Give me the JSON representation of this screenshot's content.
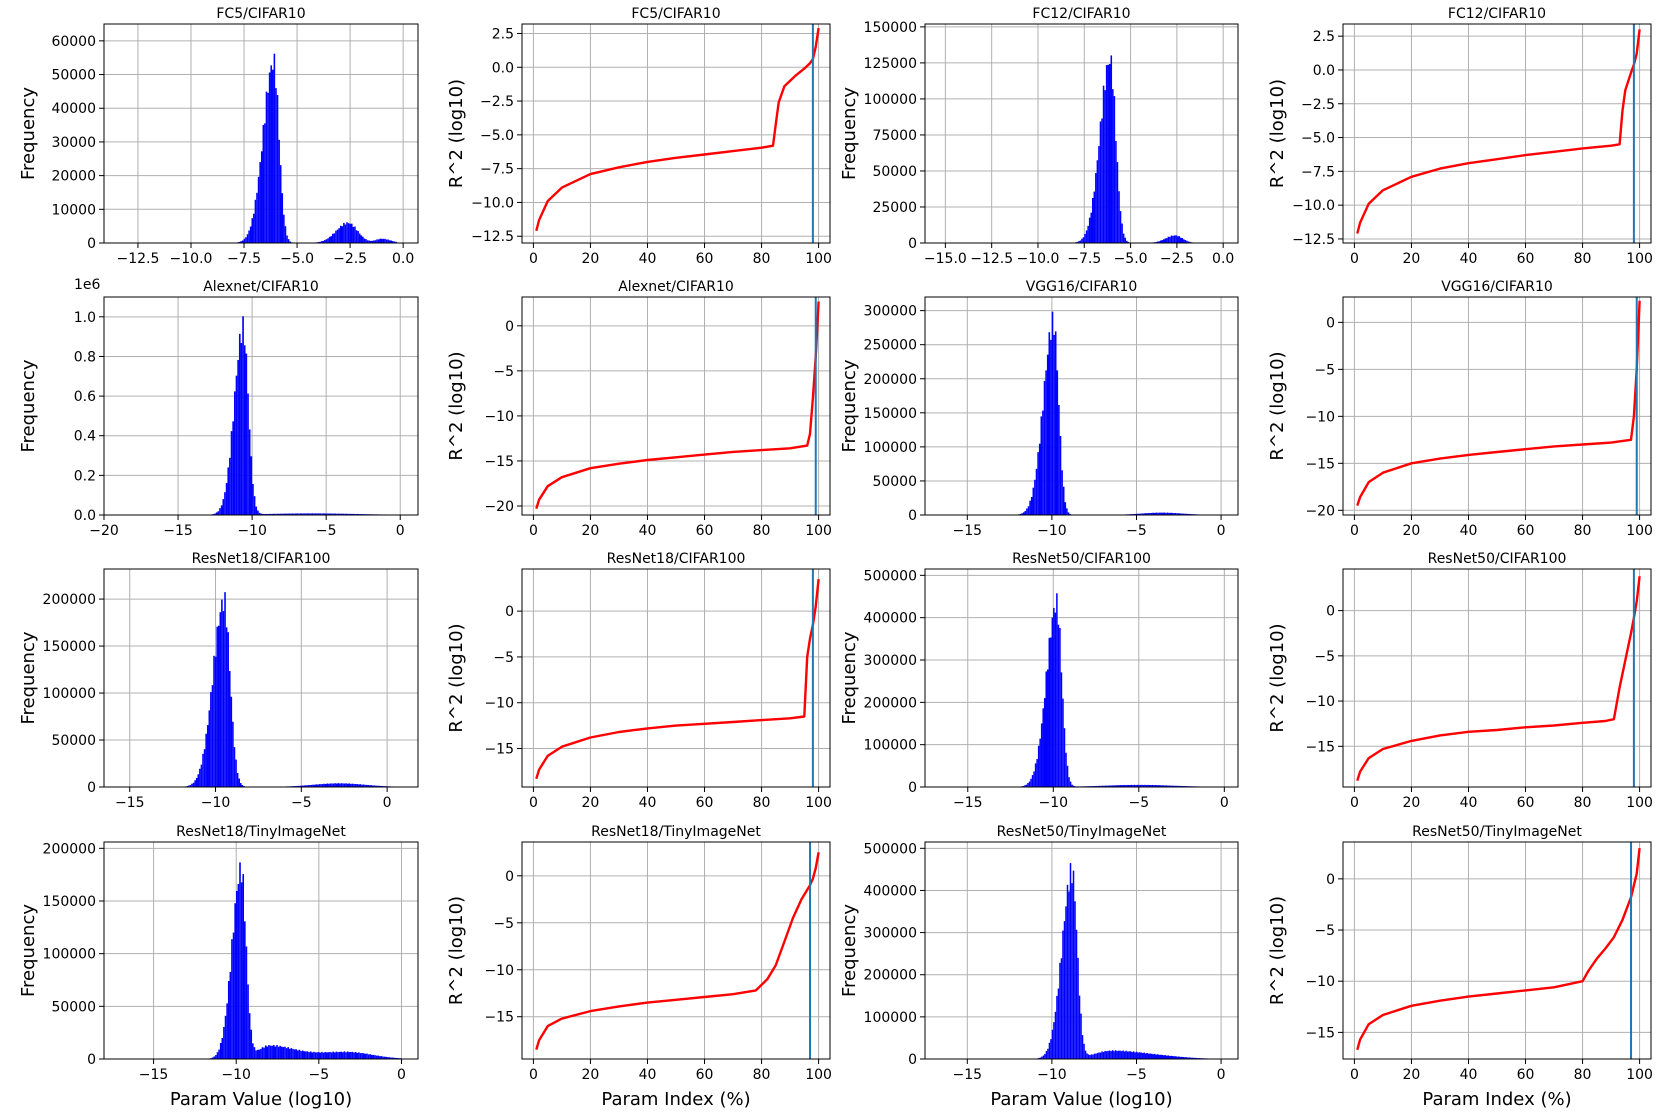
{
  "chart_data": [
    {
      "type": "histogram",
      "title": "FC5/CIFAR10",
      "xlabel": "",
      "ylabel": "Frequency",
      "xlim": [
        -14.1,
        0.7
      ],
      "ylim": [
        0,
        65000
      ],
      "xticks": [
        -12.5,
        -10.0,
        -7.5,
        -5.0,
        -2.5,
        0.0
      ],
      "xtick_labels": [
        "−12.5",
        "−10.0",
        "−7.5",
        "−5.0",
        "−2.5",
        "0.0"
      ],
      "yticks": [
        0,
        10000,
        20000,
        30000,
        40000,
        50000,
        60000
      ],
      "ytick_labels": [
        "0",
        "10000",
        "20000",
        "30000",
        "40000",
        "50000",
        "60000"
      ],
      "offset_text": "",
      "bin_range": [
        -13.7,
        -0.3
      ],
      "peaks": [
        {
          "center": -6.1,
          "height": 57000,
          "wl": 0.5,
          "wr": 0.25
        },
        {
          "center": -2.6,
          "height": 6300,
          "wl": 0.55,
          "wr": 0.45
        },
        {
          "center": -1.0,
          "height": 1300,
          "wl": 0.3,
          "wr": 0.4
        }
      ]
    },
    {
      "type": "line",
      "title": "FC5/CIFAR10",
      "xlabel": "",
      "ylabel": "R^2 (log10)",
      "xlim": [
        -4,
        104
      ],
      "ylim": [
        -13,
        3.2
      ],
      "xticks": [
        0,
        20,
        40,
        60,
        80,
        100
      ],
      "xtick_labels": [
        "0",
        "20",
        "40",
        "60",
        "80",
        "100"
      ],
      "yticks": [
        -12.5,
        -10.0,
        -7.5,
        -5.0,
        -2.5,
        0.0,
        2.5
      ],
      "ytick_labels": [
        "−12.5",
        "−10.0",
        "−7.5",
        "−5.0",
        "−2.5",
        "0.0",
        "2.5"
      ],
      "x": [
        1,
        2,
        5,
        10,
        20,
        30,
        40,
        50,
        60,
        70,
        80,
        84,
        85,
        86,
        88,
        92,
        95,
        97,
        98,
        99,
        100
      ],
      "y": [
        -12.1,
        -11.3,
        -9.9,
        -8.9,
        -7.9,
        -7.4,
        -7.0,
        -6.7,
        -6.45,
        -6.2,
        -5.95,
        -5.8,
        -4.2,
        -2.6,
        -1.4,
        -0.6,
        -0.1,
        0.3,
        0.6,
        1.5,
        2.9
      ],
      "vline": 98
    },
    {
      "type": "histogram",
      "title": "FC12/CIFAR10",
      "xlabel": "",
      "ylabel": "Frequency",
      "xlim": [
        -16.1,
        0.8
      ],
      "ylim": [
        0,
        152000
      ],
      "xticks": [
        -15.0,
        -12.5,
        -10.0,
        -7.5,
        -5.0,
        -2.5,
        0.0
      ],
      "xtick_labels": [
        "−15.0",
        "−12.5",
        "−10.0",
        "−7.5",
        "−5.0",
        "−2.5",
        "0.0"
      ],
      "yticks": [
        0,
        25000,
        50000,
        75000,
        100000,
        125000,
        150000
      ],
      "ytick_labels": [
        "0",
        "25000",
        "50000",
        "75000",
        "100000",
        "125000",
        "150000"
      ],
      "offset_text": "",
      "bin_range": [
        -15.5,
        -0.5
      ],
      "peaks": [
        {
          "center": -6.1,
          "height": 135000,
          "wl": 0.55,
          "wr": 0.3
        },
        {
          "center": -2.6,
          "height": 5500,
          "wl": 0.5,
          "wr": 0.4
        }
      ]
    },
    {
      "type": "line",
      "title": "FC12/CIFAR10",
      "xlabel": "",
      "ylabel": "R^2 (log10)",
      "xlim": [
        -4,
        104
      ],
      "ylim": [
        -12.8,
        3.4
      ],
      "xticks": [
        0,
        20,
        40,
        60,
        80,
        100
      ],
      "xtick_labels": [
        "0",
        "20",
        "40",
        "60",
        "80",
        "100"
      ],
      "yticks": [
        -12.5,
        -10.0,
        -7.5,
        -5.0,
        -2.5,
        0.0,
        2.5
      ],
      "ytick_labels": [
        "−12.5",
        "−10.0",
        "−7.5",
        "−5.0",
        "−2.5",
        "0.0",
        "2.5"
      ],
      "x": [
        1,
        2,
        5,
        10,
        20,
        30,
        40,
        50,
        60,
        70,
        80,
        90,
        93,
        94,
        95,
        97,
        98,
        99,
        100
      ],
      "y": [
        -12.1,
        -11.3,
        -9.9,
        -8.9,
        -7.9,
        -7.3,
        -6.9,
        -6.6,
        -6.3,
        -6.05,
        -5.8,
        -5.6,
        -5.5,
        -3.0,
        -1.5,
        -0.2,
        0.4,
        1.2,
        3.0
      ],
      "vline": 98
    },
    {
      "type": "histogram",
      "title": "Alexnet/CIFAR10",
      "xlabel": "",
      "ylabel": "Frequency",
      "xlim": [
        -20.0,
        1.2
      ],
      "ylim": [
        0,
        1.1
      ],
      "xticks": [
        -20,
        -15,
        -10,
        -5,
        0
      ],
      "xtick_labels": [
        "−20",
        "−15",
        "−10",
        "−5",
        "0"
      ],
      "yticks": [
        0.0,
        0.2,
        0.4,
        0.6,
        0.8,
        1.0
      ],
      "ytick_labels": [
        "0.0",
        "0.2",
        "0.4",
        "0.6",
        "0.8",
        "1.0"
      ],
      "offset_text": "1e6",
      "bin_range": [
        -20,
        0
      ],
      "peaks": [
        {
          "center": -10.6,
          "height": 1.0,
          "wl": 0.6,
          "wr": 0.35
        },
        {
          "center": -6.0,
          "height": 0.008,
          "wl": 3.0,
          "wr": 3.0
        }
      ]
    },
    {
      "type": "line",
      "title": "Alexnet/CIFAR10",
      "xlabel": "",
      "ylabel": "R^2 (log10)",
      "xlim": [
        -4,
        104
      ],
      "ylim": [
        -21,
        3.2
      ],
      "xticks": [
        0,
        20,
        40,
        60,
        80,
        100
      ],
      "xtick_labels": [
        "0",
        "20",
        "40",
        "60",
        "80",
        "100"
      ],
      "yticks": [
        -20,
        -15,
        -10,
        -5,
        0
      ],
      "ytick_labels": [
        "−20",
        "−15",
        "−10",
        "−5",
        "0"
      ],
      "x": [
        1,
        2,
        5,
        10,
        20,
        30,
        40,
        50,
        60,
        70,
        80,
        90,
        96,
        97,
        98,
        99,
        100
      ],
      "y": [
        -20.3,
        -19.3,
        -17.8,
        -16.8,
        -15.8,
        -15.3,
        -14.9,
        -14.6,
        -14.3,
        -14.0,
        -13.8,
        -13.6,
        -13.3,
        -12.0,
        -8.0,
        -3.5,
        2.7
      ],
      "vline": 99
    },
    {
      "type": "histogram",
      "title": "VGG16/CIFAR10",
      "xlabel": "",
      "ylabel": "Frequency",
      "xlim": [
        -17.5,
        1.0
      ],
      "ylim": [
        0,
        320000
      ],
      "xticks": [
        -15,
        -10,
        -5,
        0
      ],
      "xtick_labels": [
        "−15",
        "−10",
        "−5",
        "0"
      ],
      "yticks": [
        0,
        50000,
        100000,
        150000,
        200000,
        250000,
        300000
      ],
      "ytick_labels": [
        "0",
        "50000",
        "100000",
        "150000",
        "200000",
        "250000",
        "300000"
      ],
      "offset_text": "",
      "bin_range": [
        -17,
        0
      ],
      "peaks": [
        {
          "center": -9.9,
          "height": 300000,
          "wl": 0.6,
          "wr": 0.3
        },
        {
          "center": -3.5,
          "height": 3500,
          "wl": 1.2,
          "wr": 1.2
        }
      ]
    },
    {
      "type": "line",
      "title": "VGG16/CIFAR10",
      "xlabel": "",
      "ylabel": "R^2 (log10)",
      "xlim": [
        -4,
        104
      ],
      "ylim": [
        -20.5,
        2.7
      ],
      "xticks": [
        0,
        20,
        40,
        60,
        80,
        100
      ],
      "xtick_labels": [
        "0",
        "20",
        "40",
        "60",
        "80",
        "100"
      ],
      "yticks": [
        -20,
        -15,
        -10,
        -5,
        0
      ],
      "ytick_labels": [
        "−20",
        "−15",
        "−10",
        "−5",
        "0"
      ],
      "x": [
        1,
        2,
        5,
        10,
        20,
        30,
        40,
        50,
        60,
        70,
        80,
        90,
        97,
        98,
        99,
        100
      ],
      "y": [
        -19.5,
        -18.6,
        -17.0,
        -16.0,
        -15.0,
        -14.5,
        -14.1,
        -13.8,
        -13.5,
        -13.2,
        -13.0,
        -12.8,
        -12.5,
        -10.0,
        -5.0,
        2.3
      ],
      "vline": 99
    },
    {
      "type": "histogram",
      "title": "ResNet18/CIFAR100",
      "xlabel": "",
      "ylabel": "Frequency",
      "xlim": [
        -16.5,
        1.8
      ],
      "ylim": [
        0,
        232000
      ],
      "xticks": [
        -15,
        -10,
        -5,
        0
      ],
      "xtick_labels": [
        "−15",
        "−10",
        "−5",
        "0"
      ],
      "yticks": [
        0,
        50000,
        100000,
        150000,
        200000
      ],
      "ytick_labels": [
        "0",
        "50000",
        "100000",
        "150000",
        "200000"
      ],
      "offset_text": "",
      "bin_range": [
        -16,
        0.5
      ],
      "peaks": [
        {
          "center": -9.5,
          "height": 210000,
          "wl": 0.65,
          "wr": 0.35
        },
        {
          "center": -2.8,
          "height": 4000,
          "wl": 1.5,
          "wr": 1.5
        }
      ]
    },
    {
      "type": "line",
      "title": "ResNet18/CIFAR100",
      "xlabel": "",
      "ylabel": "R^2 (log10)",
      "xlim": [
        -4,
        104
      ],
      "ylim": [
        -19.2,
        4.6
      ],
      "xticks": [
        0,
        20,
        40,
        60,
        80,
        100
      ],
      "xtick_labels": [
        "0",
        "20",
        "40",
        "60",
        "80",
        "100"
      ],
      "yticks": [
        -15,
        -10,
        -5,
        0
      ],
      "ytick_labels": [
        "−15",
        "−10",
        "−5",
        "0"
      ],
      "x": [
        1,
        2,
        5,
        10,
        20,
        30,
        40,
        50,
        60,
        70,
        80,
        90,
        95,
        96,
        97,
        98,
        99,
        100
      ],
      "y": [
        -18.3,
        -17.3,
        -15.8,
        -14.8,
        -13.8,
        -13.2,
        -12.8,
        -12.5,
        -12.3,
        -12.1,
        -11.9,
        -11.7,
        -11.5,
        -5.0,
        -3.0,
        -1.5,
        0.5,
        3.5
      ],
      "vline": 98
    },
    {
      "type": "histogram",
      "title": "ResNet50/CIFAR100",
      "xlabel": "",
      "ylabel": "Frequency",
      "xlim": [
        -17.5,
        0.8
      ],
      "ylim": [
        0,
        515000
      ],
      "xticks": [
        -15,
        -10,
        -5,
        0
      ],
      "xtick_labels": [
        "−15",
        "−10",
        "−5",
        "0"
      ],
      "yticks": [
        0,
        100000,
        200000,
        300000,
        400000,
        500000
      ],
      "ytick_labels": [
        "0",
        "100000",
        "200000",
        "300000",
        "400000",
        "500000"
      ],
      "offset_text": "",
      "bin_range": [
        -16.5,
        -0.5
      ],
      "peaks": [
        {
          "center": -9.8,
          "height": 460000,
          "wl": 0.6,
          "wr": 0.3
        },
        {
          "center": -5.0,
          "height": 5000,
          "wl": 2.0,
          "wr": 2.0
        }
      ]
    },
    {
      "type": "line",
      "title": "ResNet50/CIFAR100",
      "xlabel": "",
      "ylabel": "R^2 (log10)",
      "xlim": [
        -4,
        104
      ],
      "ylim": [
        -19.5,
        4.6
      ],
      "xticks": [
        0,
        20,
        40,
        60,
        80,
        100
      ],
      "xtick_labels": [
        "0",
        "20",
        "40",
        "60",
        "80",
        "100"
      ],
      "yticks": [
        -15,
        -10,
        -5,
        0
      ],
      "ytick_labels": [
        "−15",
        "−10",
        "−5",
        "0"
      ],
      "x": [
        1,
        2,
        5,
        10,
        20,
        30,
        40,
        50,
        60,
        70,
        80,
        88,
        91,
        93,
        95,
        97,
        98,
        99,
        100
      ],
      "y": [
        -18.8,
        -17.8,
        -16.3,
        -15.3,
        -14.4,
        -13.8,
        -13.4,
        -13.2,
        -12.9,
        -12.7,
        -12.4,
        -12.2,
        -12.0,
        -8.5,
        -5.5,
        -2.5,
        -0.8,
        1.0,
        3.8
      ],
      "vline": 98
    },
    {
      "type": "histogram",
      "title": "ResNet18/TinyImageNet",
      "xlabel": "Param Value (log10)",
      "ylabel": "Frequency",
      "xlim": [
        -18.0,
        1.0
      ],
      "ylim": [
        0,
        206000
      ],
      "xticks": [
        -15,
        -10,
        -5,
        0
      ],
      "xtick_labels": [
        "−15",
        "−10",
        "−5",
        "0"
      ],
      "yticks": [
        0,
        50000,
        100000,
        150000,
        200000
      ],
      "ytick_labels": [
        "0",
        "50000",
        "100000",
        "150000",
        "200000"
      ],
      "offset_text": "",
      "bin_range": [
        -17.5,
        0
      ],
      "peaks": [
        {
          "center": -9.7,
          "height": 190000,
          "wl": 0.55,
          "wr": 0.3
        },
        {
          "center": -8.0,
          "height": 13000,
          "wl": 0.7,
          "wr": 1.5
        },
        {
          "center": -3.3,
          "height": 7000,
          "wl": 2.0,
          "wr": 1.5
        }
      ]
    },
    {
      "type": "line",
      "title": "ResNet18/TinyImageNet",
      "xlabel": "Param Index (%)",
      "ylabel": "R^2 (log10)",
      "xlim": [
        -4,
        104
      ],
      "ylim": [
        -19.5,
        3.6
      ],
      "xticks": [
        0,
        20,
        40,
        60,
        80,
        100
      ],
      "xtick_labels": [
        "0",
        "20",
        "40",
        "60",
        "80",
        "100"
      ],
      "yticks": [
        -15,
        -10,
        -5,
        0
      ],
      "ytick_labels": [
        "−15",
        "−10",
        "−5",
        "0"
      ],
      "x": [
        1,
        2,
        5,
        10,
        20,
        30,
        40,
        50,
        60,
        70,
        78,
        82,
        85,
        88,
        91,
        94,
        97,
        98,
        99,
        100
      ],
      "y": [
        -18.5,
        -17.5,
        -16.0,
        -15.2,
        -14.4,
        -13.9,
        -13.5,
        -13.2,
        -12.9,
        -12.6,
        -12.2,
        -11.0,
        -9.5,
        -7.0,
        -4.5,
        -2.5,
        -1.0,
        -0.3,
        0.8,
        2.5
      ],
      "vline": 97
    },
    {
      "type": "histogram",
      "title": "ResNet50/TinyImageNet",
      "xlabel": "Param Value (log10)",
      "ylabel": "Frequency",
      "xlim": [
        -17.5,
        1.0
      ],
      "ylim": [
        0,
        515000
      ],
      "xticks": [
        -15,
        -10,
        -5,
        0
      ],
      "xtick_labels": [
        "−15",
        "−10",
        "−5",
        "0"
      ],
      "yticks": [
        0,
        100000,
        200000,
        300000,
        400000,
        500000
      ],
      "ytick_labels": [
        "0",
        "100000",
        "200000",
        "300000",
        "400000",
        "500000"
      ],
      "offset_text": "",
      "bin_range": [
        -16.5,
        -0.5
      ],
      "peaks": [
        {
          "center": -8.8,
          "height": 470000,
          "wl": 0.6,
          "wr": 0.3
        },
        {
          "center": -6.5,
          "height": 20000,
          "wl": 1.0,
          "wr": 1.8
        },
        {
          "center": -3.5,
          "height": 5000,
          "wl": 1.5,
          "wr": 1.5
        }
      ]
    },
    {
      "type": "line",
      "title": "ResNet50/TinyImageNet",
      "xlabel": "Param Index (%)",
      "ylabel": "R^2 (log10)",
      "xlim": [
        -4,
        104
      ],
      "ylim": [
        -17.6,
        3.6
      ],
      "xticks": [
        0,
        20,
        40,
        60,
        80,
        100
      ],
      "xtick_labels": [
        "0",
        "20",
        "40",
        "60",
        "80",
        "100"
      ],
      "yticks": [
        -15,
        -10,
        -5,
        0
      ],
      "ytick_labels": [
        "−15",
        "−10",
        "−5",
        "0"
      ],
      "x": [
        1,
        2,
        5,
        10,
        20,
        30,
        40,
        50,
        60,
        70,
        80,
        82,
        85,
        88,
        91,
        94,
        97,
        99,
        100
      ],
      "y": [
        -16.7,
        -15.7,
        -14.2,
        -13.3,
        -12.4,
        -11.9,
        -11.5,
        -11.2,
        -10.9,
        -10.6,
        -10.0,
        -9.0,
        -7.8,
        -6.8,
        -5.7,
        -4.0,
        -1.8,
        0.5,
        3.0
      ],
      "vline": 97
    }
  ]
}
